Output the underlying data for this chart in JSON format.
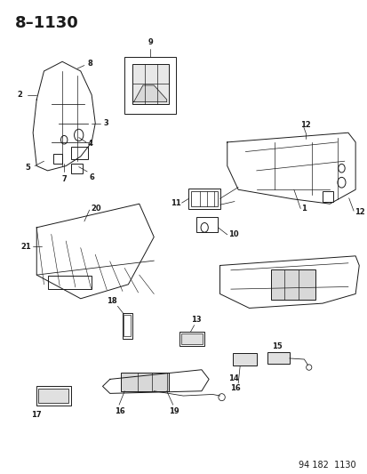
{
  "title": "8–1130",
  "footer": "94 182  1130",
  "bg_color": "#ffffff",
  "title_fontsize": 13,
  "title_bold": true,
  "footer_fontsize": 7,
  "diagram_color": "#1a1a1a"
}
